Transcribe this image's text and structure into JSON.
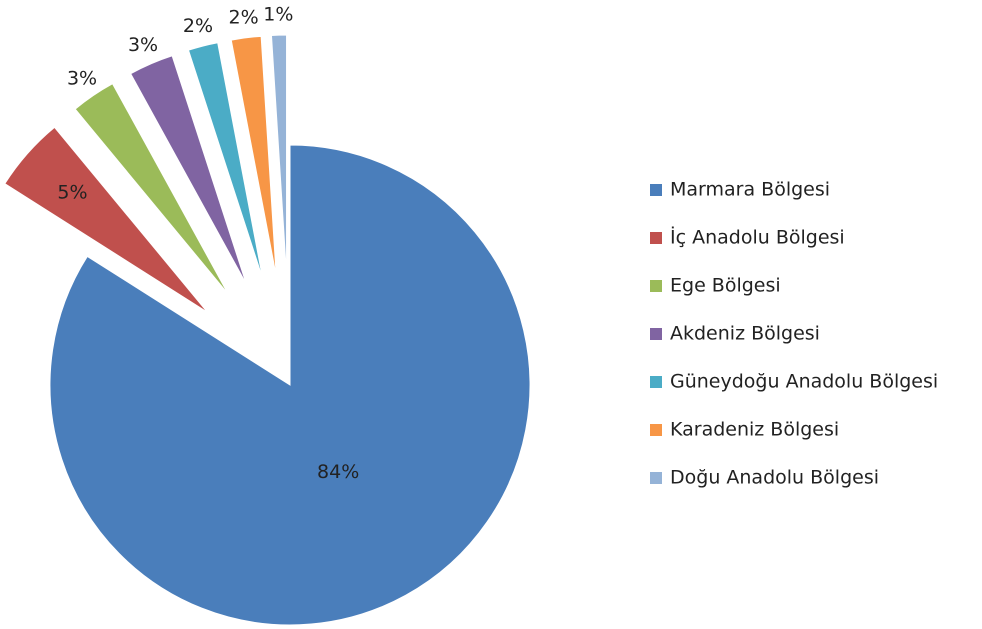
{
  "chart_data": {
    "type": "pie",
    "categories": [
      "Marmara Bölgesi",
      "İç Anadolu Bölgesi",
      "Ege Bölgesi",
      "Akdeniz Bölgesi",
      "Güneydoğu Anadolu Bölgesi",
      "Karadeniz Bölgesi",
      "Doğu Anadolu Bölgesi"
    ],
    "values": [
      84,
      5,
      3,
      3,
      2,
      2,
      1
    ],
    "value_labels": [
      "84%",
      "5%",
      "3%",
      "3%",
      "2%",
      "2%",
      "1%"
    ],
    "colors": [
      "#4a7ebb",
      "#c0504d",
      "#9bbb59",
      "#8064a2",
      "#4bacc6",
      "#f79646",
      "#95b3d7"
    ],
    "legend": "right"
  }
}
